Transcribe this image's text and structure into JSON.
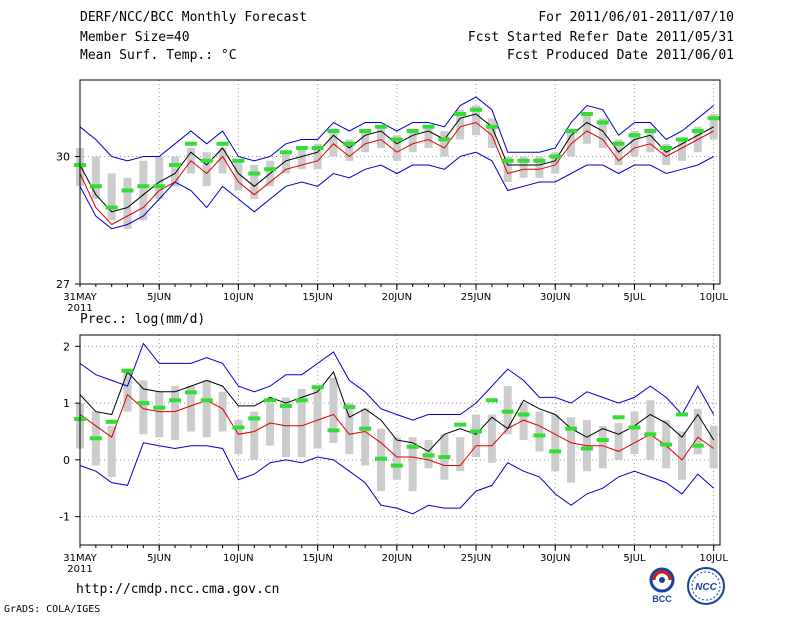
{
  "header": {
    "title": "DERF/NCC/BCC Monthly Forecast",
    "member_size": "Member Size=40",
    "variable1": "Mean Surf. Temp.: °C",
    "for_period": "For 2011/06/01-2011/07/10",
    "started": "Fcst Started Refer Date 2011/05/31",
    "produced": "Fcst Produced Date 2011/06/01"
  },
  "footer": {
    "url": "http://cmdp.ncc.cma.gov.cn",
    "grads": "GrADS: COLA/IGES",
    "logo_bcc": "BCC",
    "logo_ncc": "NCC"
  },
  "colors": {
    "ens_max_min": "#0000cc",
    "ens_mean": "#000000",
    "red_line": "#e00000",
    "green_marker": "#33dd33",
    "box": "#cccccc",
    "grid": "#999999"
  },
  "chart_data": [
    {
      "type": "line",
      "title": "Mean Surf. Temp.: °C",
      "start_day_label": "31MAY",
      "start_year_label": "2011",
      "x_tick_labels": [
        "5JUN",
        "10JUN",
        "15JUN",
        "20JUN",
        "25JUN",
        "30JUN",
        "5JUL",
        "10JUL"
      ],
      "x_tick_days": [
        5,
        10,
        15,
        20,
        25,
        30,
        35,
        40
      ],
      "xlim": [
        0,
        40.4
      ],
      "ylim": [
        27,
        31.8
      ],
      "y_ticks": [
        27,
        30
      ],
      "series": [
        {
          "name": "max",
          "values": [
            30.7,
            30.4,
            30.0,
            29.9,
            30.0,
            30.0,
            30.3,
            30.6,
            30.3,
            30.6,
            30.0,
            29.9,
            30.0,
            30.3,
            30.4,
            30.4,
            30.8,
            30.6,
            30.8,
            30.8,
            30.6,
            30.8,
            30.8,
            30.7,
            31.2,
            31.4,
            31.1,
            30.1,
            30.1,
            30.1,
            30.2,
            30.8,
            31.2,
            31.1,
            30.5,
            30.8,
            30.8,
            30.4,
            30.6,
            30.9,
            31.2
          ]
        },
        {
          "name": "min",
          "values": [
            29.3,
            28.6,
            28.3,
            28.4,
            28.6,
            29.0,
            29.4,
            29.2,
            28.8,
            29.3,
            29.0,
            28.7,
            29.0,
            29.3,
            29.4,
            29.3,
            29.6,
            29.5,
            29.7,
            29.8,
            29.6,
            29.8,
            29.8,
            29.7,
            30.0,
            30.1,
            29.9,
            29.2,
            29.3,
            29.4,
            29.4,
            29.6,
            29.8,
            29.8,
            29.6,
            29.8,
            29.8,
            29.6,
            29.7,
            29.8,
            30.0
          ]
        },
        {
          "name": "mean",
          "values": [
            29.8,
            29.1,
            28.7,
            28.8,
            29.1,
            29.4,
            29.6,
            30.1,
            29.8,
            30.2,
            29.6,
            29.3,
            29.6,
            29.9,
            30.0,
            30.1,
            30.5,
            30.2,
            30.5,
            30.6,
            30.3,
            30.5,
            30.6,
            30.4,
            30.9,
            31.0,
            30.7,
            29.8,
            29.8,
            29.8,
            29.9,
            30.5,
            30.8,
            30.6,
            30.1,
            30.4,
            30.5,
            30.1,
            30.3,
            30.5,
            30.7
          ]
        },
        {
          "name": "lower",
          "values": [
            29.6,
            28.8,
            28.4,
            28.6,
            28.8,
            29.2,
            29.4,
            29.9,
            29.6,
            30.0,
            29.4,
            29.1,
            29.4,
            29.7,
            29.8,
            29.9,
            30.3,
            30.0,
            30.3,
            30.4,
            30.1,
            30.3,
            30.4,
            30.2,
            30.7,
            30.8,
            30.5,
            29.6,
            29.7,
            29.7,
            29.8,
            30.3,
            30.6,
            30.4,
            29.9,
            30.2,
            30.3,
            30.0,
            30.2,
            30.4,
            30.6
          ]
        },
        {
          "name": "green",
          "values": [
            29.8,
            29.3,
            28.8,
            29.2,
            29.3,
            29.3,
            29.8,
            30.3,
            29.9,
            30.3,
            29.9,
            29.6,
            29.7,
            30.1,
            30.2,
            30.2,
            30.6,
            30.3,
            30.6,
            30.7,
            30.4,
            30.6,
            30.7,
            30.4,
            31.0,
            31.1,
            30.7,
            29.9,
            29.9,
            29.9,
            30.0,
            30.6,
            31.0,
            30.8,
            30.3,
            30.5,
            30.6,
            30.2,
            30.4,
            30.6,
            30.9
          ]
        },
        {
          "name": "box_high",
          "values": [
            30.2,
            30.0,
            29.6,
            29.5,
            29.9,
            30.0,
            30.0,
            30.2,
            30.1,
            30.2,
            29.9,
            29.8,
            29.9,
            30.1,
            30.2,
            30.3,
            30.6,
            30.4,
            30.6,
            30.7,
            30.5,
            30.6,
            30.7,
            30.6,
            31.1,
            31.2,
            30.9,
            30.0,
            30.0,
            30.0,
            30.1,
            30.6,
            31.0,
            30.9,
            30.4,
            30.6,
            30.6,
            30.3,
            30.4,
            30.7,
            31.0
          ]
        },
        {
          "name": "box_low",
          "values": [
            29.3,
            29.0,
            28.5,
            28.3,
            28.5,
            29.0,
            29.3,
            29.6,
            29.3,
            29.6,
            29.2,
            29.0,
            29.3,
            29.6,
            29.7,
            29.7,
            30.0,
            29.9,
            30.1,
            30.2,
            29.9,
            30.1,
            30.2,
            30.0,
            30.4,
            30.5,
            30.2,
            29.4,
            29.5,
            29.5,
            29.6,
            30.0,
            30.3,
            30.2,
            29.8,
            30.0,
            30.1,
            29.8,
            29.9,
            30.1,
            30.4
          ]
        }
      ]
    },
    {
      "type": "line",
      "title": "Prec.: log(mm/d)",
      "start_day_label": "31MAY",
      "start_year_label": "2011",
      "x_tick_labels": [
        "5JUN",
        "10JUN",
        "15JUN",
        "20JUN",
        "25JUN",
        "30JUN",
        "5JUL",
        "10JUL"
      ],
      "x_tick_days": [
        5,
        10,
        15,
        20,
        25,
        30,
        35,
        40
      ],
      "xlim": [
        0,
        40.4
      ],
      "ylim": [
        -1.5,
        2.2
      ],
      "y_ticks": [
        -1,
        0,
        1,
        2
      ],
      "series": [
        {
          "name": "max",
          "values": [
            1.7,
            1.5,
            1.4,
            1.3,
            2.05,
            1.7,
            1.7,
            1.7,
            1.8,
            1.7,
            1.3,
            1.2,
            1.3,
            1.5,
            1.5,
            1.7,
            1.9,
            1.4,
            1.2,
            0.9,
            0.8,
            0.7,
            0.8,
            0.8,
            0.8,
            1.0,
            1.3,
            1.6,
            1.4,
            1.1,
            1.1,
            1.0,
            1.2,
            1.1,
            1.0,
            1.1,
            1.3,
            1.1,
            0.8,
            1.3,
            0.8
          ]
        },
        {
          "name": "min",
          "values": [
            -0.1,
            -0.2,
            -0.4,
            -0.45,
            0.3,
            0.25,
            0.2,
            0.25,
            0.25,
            0.2,
            -0.35,
            -0.25,
            -0.05,
            0.0,
            -0.05,
            0.05,
            0.0,
            -0.2,
            -0.4,
            -0.8,
            -0.85,
            -0.95,
            -0.8,
            -0.85,
            -0.85,
            -0.55,
            -0.45,
            -0.05,
            -0.2,
            -0.3,
            -0.6,
            -0.8,
            -0.6,
            -0.5,
            -0.3,
            -0.2,
            -0.3,
            -0.4,
            -0.6,
            -0.25,
            -0.5
          ]
        },
        {
          "name": "mean",
          "values": [
            1.15,
            0.85,
            0.8,
            1.55,
            1.25,
            1.2,
            1.2,
            1.3,
            1.4,
            1.3,
            0.95,
            0.95,
            1.1,
            1.0,
            1.1,
            1.2,
            1.55,
            0.75,
            0.9,
            0.7,
            0.35,
            0.3,
            0.15,
            0.45,
            0.55,
            0.45,
            0.75,
            0.55,
            1.05,
            0.9,
            0.8,
            0.55,
            0.4,
            0.55,
            0.45,
            0.6,
            0.8,
            0.65,
            0.4,
            0.8,
            0.35
          ]
        },
        {
          "name": "red",
          "values": [
            0.8,
            0.6,
            0.4,
            1.15,
            0.9,
            0.85,
            0.85,
            0.95,
            1.05,
            0.9,
            0.45,
            0.5,
            0.65,
            0.6,
            0.6,
            0.7,
            0.8,
            0.45,
            0.5,
            0.3,
            0.05,
            0.05,
            0.0,
            -0.1,
            -0.1,
            0.25,
            0.25,
            0.55,
            0.7,
            0.6,
            0.45,
            0.3,
            0.25,
            0.25,
            0.15,
            0.3,
            0.45,
            0.25,
            0.0,
            0.4,
            0.2
          ]
        },
        {
          "name": "green",
          "values": [
            0.72,
            0.38,
            0.67,
            1.57,
            1.0,
            0.92,
            1.05,
            1.19,
            1.05,
            null,
            0.57,
            0.73,
            1.05,
            0.95,
            1.05,
            1.28,
            0.52,
            0.93,
            0.55,
            0.02,
            -0.1,
            0.23,
            0.08,
            0.05,
            0.62,
            0.5,
            1.05,
            0.85,
            0.8,
            0.43,
            0.15,
            0.55,
            0.2,
            0.35,
            0.75,
            0.57,
            0.45,
            0.27,
            0.8,
            0.25,
            null
          ]
        },
        {
          "name": "box_high",
          "values": [
            1.0,
            0.85,
            0.6,
            1.55,
            1.4,
            1.2,
            1.3,
            1.3,
            1.4,
            1.2,
            0.7,
            0.85,
            1.0,
            1.1,
            1.25,
            1.3,
            1.45,
            1.0,
            0.9,
            0.55,
            0.4,
            0.4,
            0.35,
            0.45,
            0.4,
            0.8,
            0.8,
            1.3,
            1.0,
            0.85,
            0.8,
            0.75,
            0.7,
            0.6,
            0.65,
            0.85,
            1.05,
            0.7,
            0.5,
            0.9,
            0.6
          ]
        },
        {
          "name": "box_low",
          "values": [
            0.2,
            -0.1,
            -0.3,
            0.85,
            0.45,
            0.4,
            0.35,
            0.5,
            0.4,
            0.5,
            0.1,
            0.0,
            0.25,
            0.05,
            0.05,
            0.2,
            0.3,
            0.1,
            -0.1,
            -0.55,
            -0.35,
            -0.55,
            -0.15,
            -0.35,
            -0.2,
            0.05,
            -0.05,
            0.45,
            0.35,
            0.15,
            -0.2,
            -0.4,
            -0.2,
            -0.15,
            0.0,
            0.1,
            0.0,
            -0.15,
            -0.35,
            0.1,
            -0.15
          ]
        }
      ]
    }
  ]
}
